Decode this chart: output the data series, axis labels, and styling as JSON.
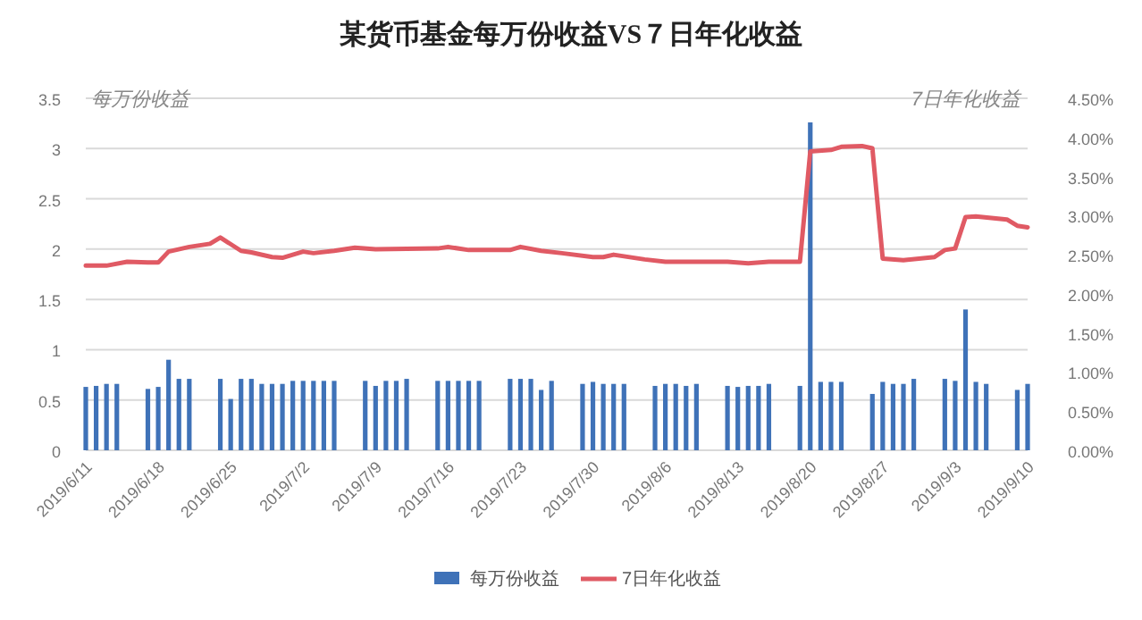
{
  "chart_data": {
    "type": "bar",
    "title": "某货币基金每万份收益VS７日年化收益",
    "ylabel": "每万份收益",
    "y2label": "7日年化收益",
    "xlim": [
      "2019-06-11",
      "2019-09-10"
    ],
    "xticks": [
      {
        "value": "2019-06-11",
        "label": "2019/6/11"
      },
      {
        "value": "2019-06-18",
        "label": "2019/6/18"
      },
      {
        "value": "2019-06-25",
        "label": "2019/6/25"
      },
      {
        "value": "2019-07-02",
        "label": "2019/7/2"
      },
      {
        "value": "2019-07-09",
        "label": "2019/7/9"
      },
      {
        "value": "2019-07-16",
        "label": "2019/7/16"
      },
      {
        "value": "2019-07-23",
        "label": "2019/7/23"
      },
      {
        "value": "2019-07-30",
        "label": "2019/7/30"
      },
      {
        "value": "2019-08-06",
        "label": "2019/8/6"
      },
      {
        "value": "2019-08-13",
        "label": "2019/8/13"
      },
      {
        "value": "2019-08-20",
        "label": "2019/8/20"
      },
      {
        "value": "2019-08-27",
        "label": "2019/8/27"
      },
      {
        "value": "2019-09-03",
        "label": "2019/9/3"
      },
      {
        "value": "2019-09-10",
        "label": "2019/9/10"
      }
    ],
    "ylim": [
      0,
      3.5
    ],
    "yticks": [
      0,
      0.5,
      1,
      1.5,
      2,
      2.5,
      3,
      3.5
    ],
    "y2lim": [
      0,
      4.5
    ],
    "y2ticks": [
      {
        "value": 0,
        "label": "0.00%"
      },
      {
        "value": 0.5,
        "label": "0.50%"
      },
      {
        "value": 1,
        "label": "1.00%"
      },
      {
        "value": 1.5,
        "label": "1.50%"
      },
      {
        "value": 2,
        "label": "2.00%"
      },
      {
        "value": 2.5,
        "label": "2.50%"
      },
      {
        "value": 3,
        "label": "3.00%"
      },
      {
        "value": 3.5,
        "label": "3.50%"
      },
      {
        "value": 4,
        "label": "4.00%"
      },
      {
        "value": 4.5,
        "label": "4.50%"
      }
    ],
    "grid": "y",
    "legend": "bottom",
    "series": [
      {
        "name": "每万份收益",
        "color": "#3f72b8",
        "x": [
          "2019-06-11",
          "2019-06-12",
          "2019-06-13",
          "2019-06-14",
          "2019-06-17",
          "2019-06-18",
          "2019-06-19",
          "2019-06-20",
          "2019-06-21",
          "2019-06-24",
          "2019-06-25",
          "2019-06-26",
          "2019-06-27",
          "2019-06-28",
          "2019-06-29",
          "2019-06-30",
          "2019-07-01",
          "2019-07-02",
          "2019-07-03",
          "2019-07-04",
          "2019-07-05",
          "2019-07-08",
          "2019-07-09",
          "2019-07-10",
          "2019-07-11",
          "2019-07-12",
          "2019-07-15",
          "2019-07-16",
          "2019-07-17",
          "2019-07-18",
          "2019-07-19",
          "2019-07-22",
          "2019-07-23",
          "2019-07-24",
          "2019-07-25",
          "2019-07-26",
          "2019-07-29",
          "2019-07-30",
          "2019-07-31",
          "2019-08-01",
          "2019-08-02",
          "2019-08-05",
          "2019-08-06",
          "2019-08-07",
          "2019-08-08",
          "2019-08-09",
          "2019-08-12",
          "2019-08-13",
          "2019-08-14",
          "2019-08-15",
          "2019-08-16",
          "2019-08-19",
          "2019-08-20",
          "2019-08-21",
          "2019-08-22",
          "2019-08-23",
          "2019-08-26",
          "2019-08-27",
          "2019-08-28",
          "2019-08-29",
          "2019-08-30",
          "2019-09-02",
          "2019-09-03",
          "2019-09-04",
          "2019-09-05",
          "2019-09-06",
          "2019-09-09",
          "2019-09-10"
        ],
        "values": [
          0.63,
          0.64,
          0.66,
          0.66,
          0.61,
          0.63,
          0.9,
          0.71,
          0.71,
          0.71,
          0.51,
          0.71,
          0.71,
          0.66,
          0.66,
          0.66,
          0.69,
          0.69,
          0.69,
          0.69,
          0.69,
          0.69,
          0.64,
          0.69,
          0.69,
          0.71,
          0.69,
          0.69,
          0.69,
          0.69,
          0.69,
          0.71,
          0.71,
          0.71,
          0.6,
          0.69,
          0.66,
          0.68,
          0.66,
          0.66,
          0.66,
          0.64,
          0.66,
          0.66,
          0.64,
          0.66,
          0.64,
          0.63,
          0.64,
          0.64,
          0.66,
          0.64,
          3.26,
          0.68,
          0.68,
          0.68,
          0.56,
          0.68,
          0.66,
          0.66,
          0.71,
          0.71,
          0.69,
          1.4,
          0.68,
          0.66,
          0.6,
          0.66
        ]
      },
      {
        "name": "7日年化收益",
        "type": "line",
        "axis": "y2",
        "color": "#e05a64",
        "x": [
          "2019-06-11",
          "2019-06-13",
          "2019-06-15",
          "2019-06-17",
          "2019-06-18",
          "2019-06-19",
          "2019-06-21",
          "2019-06-23",
          "2019-06-24",
          "2019-06-26",
          "2019-06-27",
          "2019-06-29",
          "2019-06-30",
          "2019-07-02",
          "2019-07-03",
          "2019-07-05",
          "2019-07-07",
          "2019-07-09",
          "2019-07-15",
          "2019-07-16",
          "2019-07-18",
          "2019-07-22",
          "2019-07-23",
          "2019-07-25",
          "2019-07-27",
          "2019-07-30",
          "2019-07-31",
          "2019-08-01",
          "2019-08-04",
          "2019-08-06",
          "2019-08-12",
          "2019-08-14",
          "2019-08-16",
          "2019-08-19",
          "2019-08-20",
          "2019-08-22",
          "2019-08-23",
          "2019-08-25",
          "2019-08-26",
          "2019-08-27",
          "2019-08-29",
          "2019-09-01",
          "2019-09-02",
          "2019-09-03",
          "2019-09-04",
          "2019-09-05",
          "2019-09-08",
          "2019-09-09",
          "2019-09-10"
        ],
        "values": [
          2.36,
          2.36,
          2.41,
          2.4,
          2.4,
          2.54,
          2.6,
          2.64,
          2.72,
          2.55,
          2.53,
          2.47,
          2.46,
          2.54,
          2.52,
          2.55,
          2.59,
          2.57,
          2.58,
          2.6,
          2.56,
          2.56,
          2.6,
          2.55,
          2.52,
          2.47,
          2.47,
          2.5,
          2.44,
          2.41,
          2.41,
          2.39,
          2.41,
          2.41,
          3.82,
          3.84,
          3.88,
          3.89,
          3.86,
          2.45,
          2.43,
          2.47,
          2.56,
          2.58,
          2.98,
          2.99,
          2.95,
          2.87,
          2.85
        ]
      }
    ]
  }
}
